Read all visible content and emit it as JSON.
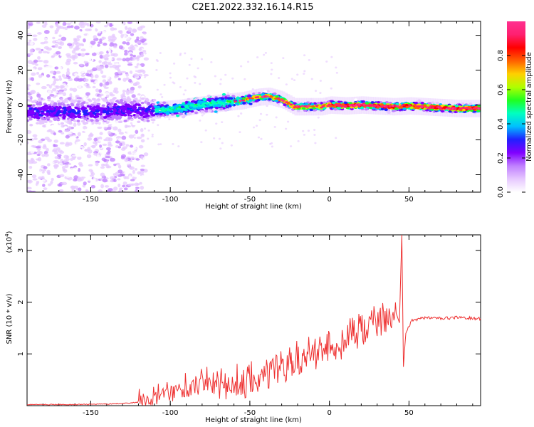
{
  "title": "C2E1.2022.332.16.14.R15",
  "chart_data": [
    {
      "type": "heatmap",
      "xlabel": "Height of straight line (km)",
      "ylabel": "Frequency (Hz)",
      "xlim": [
        -190,
        95
      ],
      "ylim": [
        -50,
        48
      ],
      "x_ticks": [
        -150,
        -100,
        -50,
        0,
        50
      ],
      "y_ticks": [
        -40,
        -20,
        0,
        20,
        40
      ],
      "colorbar": {
        "label": "Normalized spectral amplitude",
        "range": [
          0,
          1
        ],
        "ticks": [
          0.0,
          0.2,
          0.4,
          0.6,
          0.8
        ],
        "tick_labels": [
          "0.0",
          "0.2",
          "0.4",
          "0.6",
          "0.8"
        ],
        "colors": [
          "#ffffff",
          "#e6c8ff",
          "#c080ff",
          "#8000ff",
          "#2020ff",
          "#00c0ff",
          "#00ffc0",
          "#20ff20",
          "#b0ff00",
          "#ffd000",
          "#ff6000",
          "#ff0000",
          "#ff2070",
          "#ff3090"
        ]
      },
      "ridge": [
        {
          "x": -190,
          "y": -4
        },
        {
          "x": -150,
          "y": -4
        },
        {
          "x": -130,
          "y": -3
        },
        {
          "x": -110,
          "y": -3
        },
        {
          "x": -95,
          "y": -2
        },
        {
          "x": -85,
          "y": -0.5
        },
        {
          "x": -75,
          "y": 0.5
        },
        {
          "x": -65,
          "y": 1.5
        },
        {
          "x": -55,
          "y": 2.5
        },
        {
          "x": -45,
          "y": 4.5
        },
        {
          "x": -38,
          "y": 5
        },
        {
          "x": -30,
          "y": 3
        },
        {
          "x": -22,
          "y": -1
        },
        {
          "x": -15,
          "y": -1
        },
        {
          "x": -5,
          "y": -1
        },
        {
          "x": 0,
          "y": 0
        },
        {
          "x": 10,
          "y": -0.5
        },
        {
          "x": 20,
          "y": 0
        },
        {
          "x": 30,
          "y": -0.5
        },
        {
          "x": 40,
          "y": -1
        },
        {
          "x": 50,
          "y": -0.5
        },
        {
          "x": 60,
          "y": -1
        },
        {
          "x": 70,
          "y": -1.5
        },
        {
          "x": 80,
          "y": -2
        },
        {
          "x": 95,
          "y": -2
        }
      ]
    },
    {
      "type": "line",
      "xlabel": "Height of straight line (km)",
      "ylabel": "SNR (10 * v/v)",
      "y_multiplier": "(x10",
      "y_multiplier_exp": "4",
      "xlim": [
        -190,
        95
      ],
      "ylim": [
        0,
        3.3
      ],
      "x_ticks": [
        -150,
        -100,
        -50,
        0,
        50
      ],
      "y_ticks": [
        1,
        2,
        3
      ],
      "color": "#ee3030",
      "series": [
        {
          "points": [
            {
              "x": -190,
              "y": 0.02
            },
            {
              "x": -160,
              "y": 0.02
            },
            {
              "x": -140,
              "y": 0.03
            },
            {
              "x": -125,
              "y": 0.05
            },
            {
              "x": -115,
              "y": 0.08
            },
            {
              "x": -105,
              "y": 0.15
            },
            {
              "x": -95,
              "y": 0.25
            },
            {
              "x": -85,
              "y": 0.3
            },
            {
              "x": -75,
              "y": 0.35
            },
            {
              "x": -65,
              "y": 0.3
            },
            {
              "x": -55,
              "y": 0.35
            },
            {
              "x": -45,
              "y": 0.45
            },
            {
              "x": -35,
              "y": 0.6
            },
            {
              "x": -25,
              "y": 0.8
            },
            {
              "x": -15,
              "y": 0.95
            },
            {
              "x": -5,
              "y": 1.05
            },
            {
              "x": 5,
              "y": 1.15
            },
            {
              "x": 15,
              "y": 1.35
            },
            {
              "x": 25,
              "y": 1.5
            },
            {
              "x": 35,
              "y": 1.65
            },
            {
              "x": 42,
              "y": 1.78
            },
            {
              "x": 44,
              "y": 1.6
            },
            {
              "x": 45.5,
              "y": 3.3
            },
            {
              "x": 46.5,
              "y": 0.75
            },
            {
              "x": 48,
              "y": 1.4
            },
            {
              "x": 52,
              "y": 1.65
            },
            {
              "x": 60,
              "y": 1.7
            },
            {
              "x": 70,
              "y": 1.68
            },
            {
              "x": 80,
              "y": 1.7
            },
            {
              "x": 95,
              "y": 1.68
            }
          ]
        }
      ]
    }
  ]
}
